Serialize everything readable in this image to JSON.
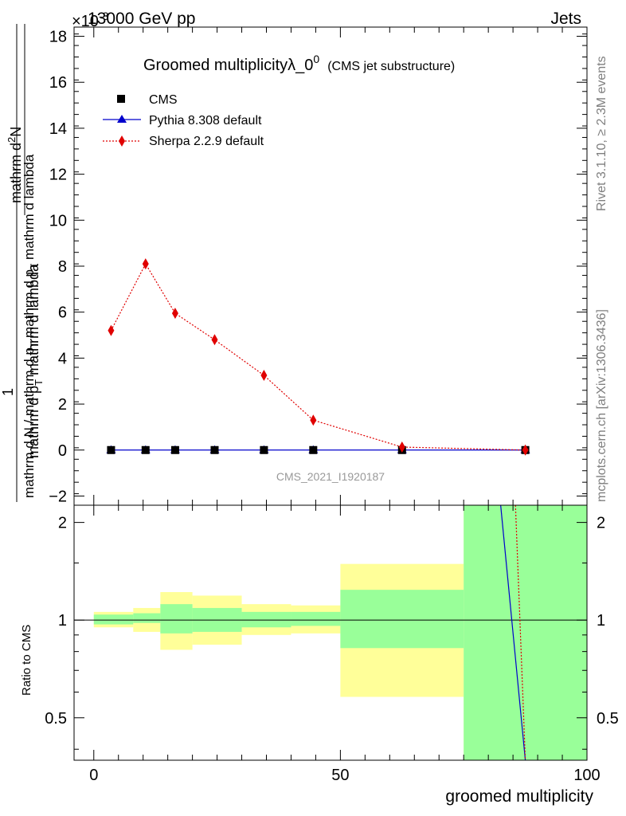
{
  "header": {
    "energy": "13000 GeV pp",
    "category": "Jets",
    "exponent": "×10",
    "exponent_power": "-3"
  },
  "side_labels": {
    "rivet": "Rivet 3.1.10, ≥ 2.3M events",
    "mcplots": "mcplots.cern.ch [arXiv:1306.3436]"
  },
  "watermark": "CMS_2021_I1920187",
  "title": {
    "main": "Groomed multiplicityλ_0",
    "superscript": "0",
    "sub": "(CMS jet substructure)"
  },
  "yaxis_label": {
    "numerator": "mathrm d",
    "numerator_sup": "2",
    "numerator_end": "N",
    "upper_denominator": "mathrm d p",
    "upper_denominator_sub": "T",
    "upper_denominator_end": " mathrm d lambda",
    "prefix": "1",
    "lower_part1": "mathrm d N / mathrm d p",
    "lower_part1_sub": "T",
    "lower_part2": " mathrm d p",
    "lower_part2_sub": "T",
    "lower_part3": " mathrm d lambda"
  },
  "ratio_ylabel": "Ratio to CMS",
  "xlabel": "groomed multiplicity",
  "legend": [
    {
      "label": "CMS",
      "color": "#000000",
      "marker": "square",
      "line": "none"
    },
    {
      "label": "Pythia 8.308 default",
      "color": "#0000cc",
      "marker": "triangle",
      "line": "solid"
    },
    {
      "label": "Sherpa 2.2.9 default",
      "color": "#e00000",
      "marker": "diamond",
      "line": "dotted"
    }
  ],
  "chart_data": {
    "type": "line",
    "xlim": [
      -4,
      100
    ],
    "main_ylim": [
      -2.4,
      18.4
    ],
    "main_yticks": [
      -2,
      0,
      2,
      4,
      6,
      8,
      10,
      12,
      14,
      16,
      18
    ],
    "ratio_ylim": [
      0.37,
      2.26
    ],
    "ratio_yticks": [
      0.5,
      1,
      2
    ],
    "xticks": [
      0,
      50,
      100
    ],
    "x": [
      3.5,
      10.5,
      16.5,
      24.5,
      34.5,
      44.5,
      62.5,
      87.5
    ],
    "bin_edges": [
      0,
      8,
      13.5,
      20,
      30,
      40,
      50,
      75,
      100
    ],
    "series": [
      {
        "name": "CMS",
        "values": [
          0,
          0,
          0,
          0,
          0,
          0,
          0,
          0
        ]
      },
      {
        "name": "Pythia 8.308 default",
        "values": [
          0,
          0,
          0,
          0,
          0,
          0,
          0,
          0
        ]
      },
      {
        "name": "Sherpa 2.2.9 default",
        "values": [
          5.2,
          8.1,
          5.95,
          4.8,
          3.25,
          1.3,
          0.13,
          0.0
        ]
      }
    ],
    "ratio_band_inner": [
      [
        0.97,
        1.04
      ],
      [
        0.98,
        1.05
      ],
      [
        0.91,
        1.12
      ],
      [
        0.92,
        1.09
      ],
      [
        0.95,
        1.06
      ],
      [
        0.96,
        1.06
      ],
      [
        0.82,
        1.24
      ],
      [
        0.37,
        2.26
      ]
    ],
    "ratio_band_outer": [
      [
        0.95,
        1.06
      ],
      [
        0.92,
        1.09
      ],
      [
        0.81,
        1.22
      ],
      [
        0.84,
        1.19
      ],
      [
        0.9,
        1.12
      ],
      [
        0.91,
        1.11
      ],
      [
        0.58,
        1.49
      ],
      [
        0.37,
        2.26
      ]
    ],
    "ratio_series": [
      {
        "name": "Pythia 8.308 default",
        "points": [
          [
            82.5,
            2.26
          ],
          [
            87.5,
            0.37
          ]
        ]
      },
      {
        "name": "Sherpa 2.2.9 default",
        "points": [
          [
            85.5,
            2.26
          ],
          [
            87.5,
            0.37
          ]
        ]
      }
    ],
    "grid": false,
    "legend_position": "top-left"
  }
}
